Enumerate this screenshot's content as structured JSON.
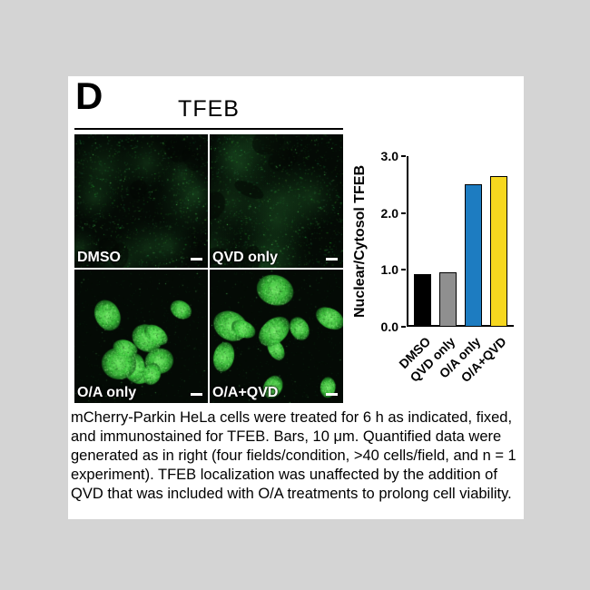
{
  "panel": {
    "letter": "D",
    "title": "TFEB"
  },
  "figure": {
    "micrographs": [
      {
        "label": "DMSO",
        "pattern": "cytosolic"
      },
      {
        "label": "QVD only",
        "pattern": "cytosolic"
      },
      {
        "label": "O/A only",
        "pattern": "nuclear"
      },
      {
        "label": "O/A+QVD",
        "pattern": "nuclear"
      }
    ]
  },
  "chart_data": {
    "type": "bar",
    "categories": [
      "DMSO",
      "QVD only",
      "O/A only",
      "O/A+QVD"
    ],
    "values": [
      0.93,
      0.95,
      2.5,
      2.65
    ],
    "bar_colors": [
      "#000000",
      "#8f8f8f",
      "#1d7cc1",
      "#f6d71f"
    ],
    "bar_edge_color": "#000000",
    "title": "",
    "xlabel": "",
    "ylabel": "Nuclear/Cytosol TFEB",
    "ylim": [
      0,
      3.0
    ],
    "yticks": [
      "0.0",
      "1.0",
      "2.0",
      "3.0"
    ],
    "grid": false,
    "legend": false
  },
  "caption": {
    "text": "mCherry-Parkin HeLa cells were treated for 6 h as indicated, fixed, and immunostained for TFEB. Bars, 10 μm. Quantified data were generated as in right (four fields/condition, >40 cells/field, and n = 1 experiment). TFEB localization was unaffected by the addition of QVD that was included with O/A treatments to prolong cell viability."
  }
}
